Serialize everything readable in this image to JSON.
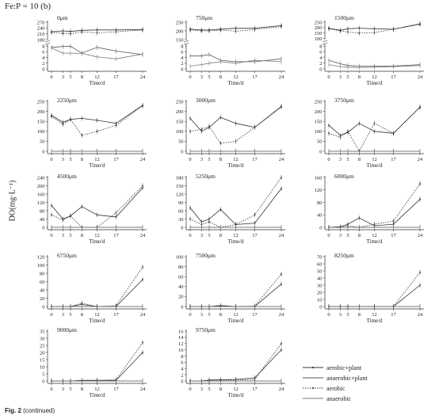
{
  "figure": {
    "heading": "Fe:P = 10 (b)",
    "y_label": "DO(mg·L⁻¹)",
    "caption_label": "Fig. 2",
    "caption_text": "(continued)"
  },
  "legend": [
    {
      "label": "aerobic+plant",
      "style": "solid",
      "marker": "dot"
    },
    {
      "label": "anaerobic+plant",
      "style": "solid",
      "marker": "none"
    },
    {
      "label": "aerobic",
      "style": "dotted",
      "marker": "dot"
    },
    {
      "label": "anaerobic",
      "style": "solid",
      "marker": "none"
    }
  ],
  "chart_data": [
    {
      "type": "line",
      "title": "0μm",
      "xlabel": "Time/d",
      "x": [
        0,
        3,
        5,
        8,
        12,
        17,
        24
      ],
      "broken_axis": true,
      "upper_ylim": [
        180,
        270
      ],
      "upper_ticks": [
        180,
        210,
        240,
        270
      ],
      "lower_ylim": [
        0,
        8
      ],
      "lower_ticks": [
        0,
        2,
        4,
        6,
        8
      ],
      "series": [
        {
          "name": "aerobic+plant",
          "values": [
            220,
            225,
            222,
            228,
            230,
            230,
            232
          ]
        },
        {
          "name": "anaerobic+plant",
          "values": [
            7.5,
            7.8,
            7.9,
            5.5,
            7.5,
            6.2,
            5.0
          ]
        },
        {
          "name": "aerobic",
          "values": [
            218,
            212,
            210,
            220,
            215,
            220,
            230
          ]
        },
        {
          "name": "anaerobic",
          "values": [
            7.3,
            5.5,
            5.5,
            5.4,
            4.2,
            3.5,
            5.2
          ]
        }
      ]
    },
    {
      "type": "line",
      "title": "750μm",
      "xlabel": "Time/d",
      "x": [
        0,
        3,
        5,
        8,
        12,
        17,
        24
      ],
      "broken_axis": true,
      "upper_ylim": [
        150,
        250
      ],
      "upper_ticks": [
        150,
        200,
        250
      ],
      "lower_ylim": [
        0,
        8
      ],
      "lower_ticks": [
        0,
        2,
        4,
        6,
        8
      ],
      "series": [
        {
          "name": "aerobic+plant",
          "values": [
            210,
            205,
            205,
            210,
            215,
            215,
            230
          ]
        },
        {
          "name": "anaerobic+plant",
          "values": [
            4.5,
            4.5,
            5.0,
            3.0,
            2.5,
            2.5,
            3.5
          ]
        },
        {
          "name": "aerobic",
          "values": [
            205,
            200,
            200,
            205,
            198,
            208,
            225
          ]
        },
        {
          "name": "anaerobic",
          "values": [
            1.0,
            1.5,
            2.0,
            2.5,
            2.0,
            3.0,
            2.5
          ]
        }
      ]
    },
    {
      "type": "line",
      "title": "1500μm",
      "xlabel": "Time/d",
      "x": [
        0,
        3,
        5,
        8,
        12,
        17,
        24
      ],
      "broken_axis": true,
      "upper_ylim": [
        90,
        250
      ],
      "upper_ticks": [
        100,
        150,
        200,
        250
      ],
      "lower_ylim": [
        0,
        8
      ],
      "lower_ticks": [
        0,
        2,
        4,
        6,
        8
      ],
      "series": [
        {
          "name": "aerobic+plant",
          "values": [
            195,
            175,
            190,
            195,
            190,
            185,
            235
          ]
        },
        {
          "name": "anaerobic+plant",
          "values": [
            3.0,
            1.8,
            1.2,
            1.0,
            1.0,
            1.0,
            1.5
          ]
        },
        {
          "name": "aerobic",
          "values": [
            190,
            170,
            160,
            150,
            155,
            185,
            230
          ]
        },
        {
          "name": "anaerobic",
          "values": [
            1.5,
            0.8,
            0.6,
            0.5,
            0.6,
            0.8,
            1.2
          ]
        }
      ]
    },
    {
      "type": "line",
      "title": "2250μm",
      "xlabel": "Time/d",
      "x": [
        0,
        3,
        5,
        8,
        12,
        17,
        24
      ],
      "ylim": [
        0,
        250
      ],
      "yticks": [
        0,
        50,
        100,
        150,
        200,
        250
      ],
      "series": [
        {
          "name": "aerobic+plant",
          "values": [
            180,
            145,
            160,
            165,
            155,
            140,
            230
          ]
        },
        {
          "name": "anaerobic+plant",
          "values": [
            0,
            0,
            0,
            0,
            0,
            0,
            0
          ]
        },
        {
          "name": "aerobic",
          "values": [
            175,
            135,
            160,
            80,
            100,
            130,
            228
          ]
        },
        {
          "name": "anaerobic",
          "values": [
            0,
            0,
            0,
            0,
            0,
            0,
            0
          ]
        }
      ]
    },
    {
      "type": "line",
      "title": "3000μm",
      "xlabel": "Time/d",
      "x": [
        0,
        3,
        5,
        8,
        12,
        17,
        24
      ],
      "ylim": [
        0,
        250
      ],
      "yticks": [
        0,
        50,
        100,
        150,
        200,
        250
      ],
      "series": [
        {
          "name": "aerobic+plant",
          "values": [
            165,
            100,
            120,
            170,
            140,
            120,
            225
          ]
        },
        {
          "name": "anaerobic+plant",
          "values": [
            0,
            0,
            0,
            0,
            0,
            0,
            0
          ]
        },
        {
          "name": "aerobic",
          "values": [
            100,
            110,
            125,
            40,
            50,
            120,
            222
          ]
        },
        {
          "name": "anaerobic",
          "values": [
            0,
            0,
            0,
            0,
            0,
            0,
            0
          ]
        }
      ]
    },
    {
      "type": "line",
      "title": "3750μm",
      "xlabel": "Time/d",
      "x": [
        0,
        3,
        5,
        8,
        12,
        17,
        24
      ],
      "ylim": [
        0,
        250
      ],
      "yticks": [
        0,
        50,
        100,
        150,
        200,
        250
      ],
      "series": [
        {
          "name": "aerobic+plant",
          "values": [
            130,
            80,
            95,
            140,
            100,
            90,
            222
          ]
        },
        {
          "name": "anaerobic+plant",
          "values": [
            0,
            0,
            0,
            0,
            0,
            0,
            0
          ]
        },
        {
          "name": "aerobic",
          "values": [
            90,
            70,
            100,
            0,
            140,
            90,
            220
          ]
        },
        {
          "name": "anaerobic",
          "values": [
            0,
            0,
            0,
            0,
            0,
            0,
            0
          ]
        }
      ]
    },
    {
      "type": "line",
      "title": "4500μm",
      "xlabel": "Time/d",
      "x": [
        0,
        3,
        5,
        8,
        12,
        17,
        24
      ],
      "ylim": [
        0,
        240
      ],
      "yticks": [
        0,
        40,
        80,
        120,
        160,
        200,
        240
      ],
      "series": [
        {
          "name": "aerobic+plant",
          "values": [
            105,
            40,
            55,
            100,
            60,
            50,
            190
          ]
        },
        {
          "name": "anaerobic+plant",
          "values": [
            0,
            0,
            0,
            0,
            0,
            0,
            0
          ]
        },
        {
          "name": "aerobic",
          "values": [
            60,
            35,
            55,
            0,
            0,
            70,
            200
          ]
        },
        {
          "name": "anaerobic",
          "values": [
            0,
            0,
            0,
            0,
            0,
            0,
            0
          ]
        }
      ]
    },
    {
      "type": "line",
      "title": "5250μm",
      "xlabel": "Time/d",
      "x": [
        0,
        3,
        5,
        8,
        12,
        17,
        24
      ],
      "ylim": [
        0,
        180
      ],
      "yticks": [
        0,
        30,
        60,
        90,
        120,
        150,
        180
      ],
      "series": [
        {
          "name": "aerobic+plant",
          "values": [
            70,
            20,
            30,
            65,
            10,
            15,
            140
          ]
        },
        {
          "name": "anaerobic+plant",
          "values": [
            0,
            0,
            0,
            0,
            0,
            0,
            0
          ]
        },
        {
          "name": "aerobic",
          "values": [
            30,
            10,
            20,
            0,
            10,
            45,
            180
          ]
        },
        {
          "name": "anaerobic",
          "values": [
            0,
            0,
            0,
            0,
            0,
            0,
            0
          ]
        }
      ]
    },
    {
      "type": "line",
      "title": "6000μm",
      "xlabel": "Time/d",
      "x": [
        0,
        3,
        5,
        8,
        12,
        17,
        24
      ],
      "ylim": [
        0,
        160
      ],
      "yticks": [
        0,
        40,
        80,
        120,
        160
      ],
      "series": [
        {
          "name": "aerobic+plant",
          "values": [
            0,
            2,
            10,
            30,
            5,
            10,
            90
          ]
        },
        {
          "name": "anaerobic+plant",
          "values": [
            0,
            0,
            0,
            0,
            0,
            0,
            0
          ]
        },
        {
          "name": "aerobic",
          "values": [
            0,
            0,
            5,
            0,
            10,
            20,
            140
          ]
        },
        {
          "name": "anaerobic",
          "values": [
            0,
            0,
            0,
            0,
            0,
            0,
            0
          ]
        }
      ]
    },
    {
      "type": "line",
      "title": "6750μm",
      "xlabel": "Time/d",
      "x": [
        0,
        3,
        5,
        8,
        12,
        17,
        24
      ],
      "ylim": [
        0,
        120
      ],
      "yticks": [
        0,
        20,
        40,
        60,
        80,
        100,
        120
      ],
      "series": [
        {
          "name": "aerobic+plant",
          "values": [
            0,
            0,
            0,
            5,
            0,
            0,
            65
          ]
        },
        {
          "name": "anaerobic+plant",
          "values": [
            0,
            0,
            0,
            0,
            0,
            0,
            0
          ]
        },
        {
          "name": "aerobic",
          "values": [
            0,
            0,
            0,
            8,
            0,
            2,
            95
          ]
        },
        {
          "name": "anaerobic",
          "values": [
            0,
            0,
            0,
            0,
            0,
            0,
            0
          ]
        }
      ]
    },
    {
      "type": "line",
      "title": "7500μm",
      "xlabel": "Time/d",
      "x": [
        0,
        3,
        5,
        8,
        12,
        17,
        24
      ],
      "ylim": [
        0,
        100
      ],
      "yticks": [
        0,
        20,
        40,
        60,
        80,
        100
      ],
      "series": [
        {
          "name": "aerobic+plant",
          "values": [
            0,
            0,
            0,
            2,
            0,
            0,
            45
          ]
        },
        {
          "name": "anaerobic+plant",
          "values": [
            0,
            0,
            0,
            0,
            0,
            0,
            0
          ]
        },
        {
          "name": "aerobic",
          "values": [
            0,
            0,
            0,
            1,
            0,
            1,
            65
          ]
        },
        {
          "name": "anaerobic",
          "values": [
            0,
            0,
            0,
            0,
            0,
            0,
            0
          ]
        }
      ]
    },
    {
      "type": "line",
      "title": "8250μm",
      "xlabel": "Time/d",
      "x": [
        0,
        3,
        5,
        8,
        12,
        17,
        24
      ],
      "ylim": [
        0,
        70
      ],
      "yticks": [
        0,
        10,
        20,
        30,
        40,
        50,
        60,
        70
      ],
      "series": [
        {
          "name": "aerobic+plant",
          "values": [
            0,
            0,
            0,
            0,
            0,
            0,
            30
          ]
        },
        {
          "name": "anaerobic+plant",
          "values": [
            0,
            0,
            0,
            0,
            0,
            0,
            0
          ]
        },
        {
          "name": "aerobic",
          "values": [
            0,
            0,
            0,
            0,
            0,
            0,
            48
          ]
        },
        {
          "name": "anaerobic",
          "values": [
            0,
            0,
            0,
            0,
            0,
            0,
            0
          ]
        }
      ]
    },
    {
      "type": "line",
      "title": "9000μm",
      "xlabel": "Time/d",
      "x": [
        0,
        3,
        5,
        8,
        12,
        17,
        24
      ],
      "ylim": [
        0,
        35
      ],
      "yticks": [
        0,
        5,
        10,
        15,
        20,
        25,
        30,
        35
      ],
      "series": [
        {
          "name": "aerobic+plant",
          "values": [
            0,
            0,
            0,
            0.5,
            0.5,
            0.5,
            20
          ]
        },
        {
          "name": "anaerobic+plant",
          "values": [
            0,
            0,
            0,
            0,
            0,
            0,
            0
          ]
        },
        {
          "name": "aerobic",
          "values": [
            0,
            0,
            0,
            0.3,
            0.3,
            0.8,
            27
          ]
        },
        {
          "name": "anaerobic",
          "values": [
            0,
            0,
            0,
            0,
            0,
            0,
            0
          ]
        }
      ]
    },
    {
      "type": "line",
      "title": "9750μm",
      "xlabel": "Time/d",
      "x": [
        0,
        3,
        5,
        8,
        12,
        17,
        24
      ],
      "ylim": [
        0,
        16
      ],
      "yticks": [
        0,
        2,
        4,
        6,
        8,
        10,
        12,
        14,
        16
      ],
      "series": [
        {
          "name": "aerobic+plant",
          "values": [
            0,
            0,
            0.3,
            0.4,
            0.5,
            1.0,
            10
          ]
        },
        {
          "name": "anaerobic+plant",
          "values": [
            0,
            0,
            0,
            0,
            0,
            0,
            0
          ]
        },
        {
          "name": "aerobic",
          "values": [
            0,
            0,
            0.2,
            0.3,
            0.3,
            0.5,
            12
          ]
        },
        {
          "name": "anaerobic",
          "values": [
            0,
            0,
            0,
            0,
            0,
            0,
            0
          ]
        }
      ]
    }
  ]
}
